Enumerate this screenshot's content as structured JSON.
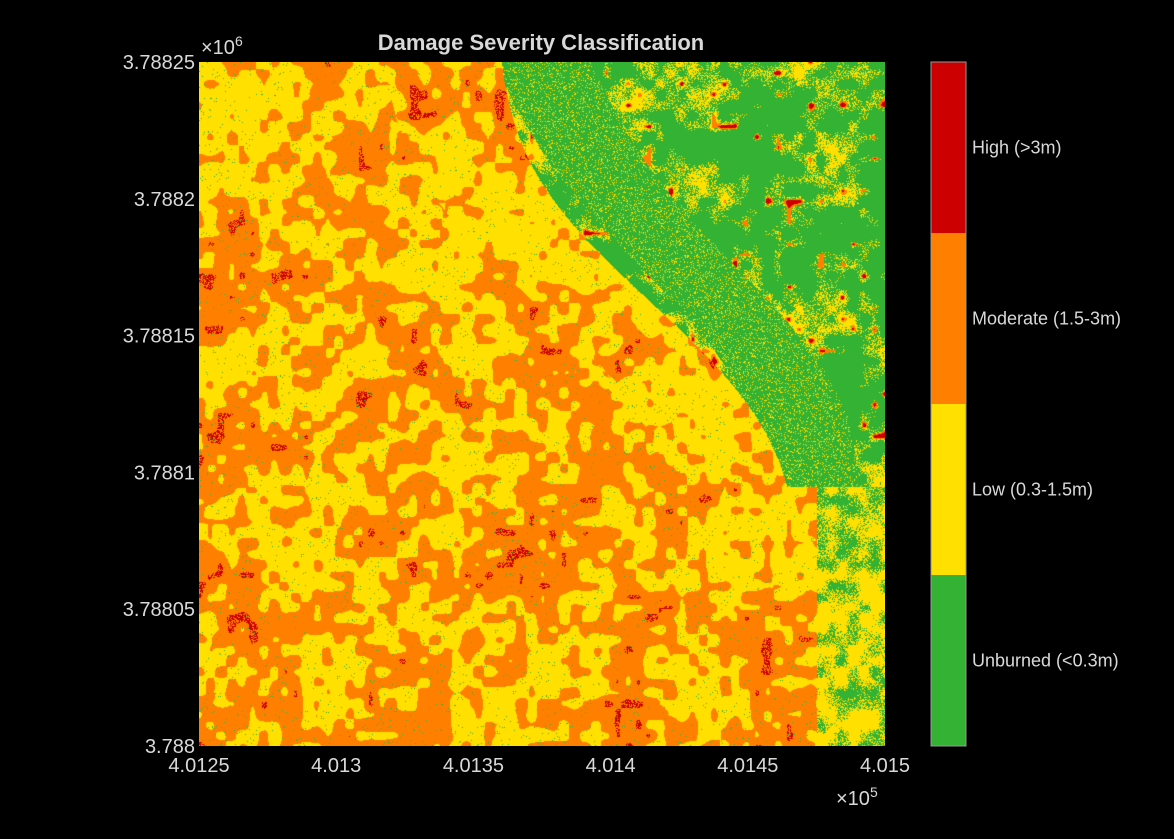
{
  "chart_data": {
    "type": "heatmap",
    "title": "Damage Severity Classification",
    "xlabel": "",
    "ylabel": "",
    "x_multiplier": "×10",
    "x_multiplier_exp": "5",
    "y_multiplier": "×10",
    "y_multiplier_exp": "6",
    "xlim": [
      4.0125,
      4.015
    ],
    "ylim": [
      3.788,
      3.78825
    ],
    "x_ticks": [
      4.0125,
      4.013,
      4.0135,
      4.014,
      4.0145,
      4.015
    ],
    "x_tick_labels": [
      "4.0125",
      "4.013",
      "4.0135",
      "4.014",
      "4.0145",
      "4.015"
    ],
    "y_ticks": [
      3.78825,
      3.7882,
      3.78815,
      3.7881,
      3.78805,
      3.788
    ],
    "y_tick_labels": [
      "3.78825",
      "3.7882",
      "3.78815",
      "3.7881",
      "3.78805",
      "3.788"
    ],
    "classes": [
      {
        "name": "High (>3m)",
        "color": "#cc0000"
      },
      {
        "name": "Moderate (1.5-3m)",
        "color": "#ff8000"
      },
      {
        "name": "Low (0.3-1.5m)",
        "color": "#ffe000"
      },
      {
        "name": "Unburned (<0.3m)",
        "color": "#33b233"
      }
    ],
    "grid": false,
    "legend": "colorbar-right"
  }
}
